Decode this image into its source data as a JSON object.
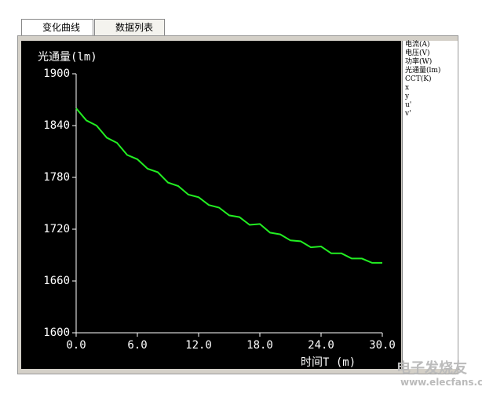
{
  "tabs": [
    "变化曲线",
    "数据列表"
  ],
  "parameters": [
    "电流(A)",
    "电压(V)",
    "功率(W)",
    "光通量(lm)",
    "CCT(K)",
    "x",
    "y",
    "u'",
    "v'"
  ],
  "watermark": {
    "name": "电子发烧友",
    "url": "www.elecfans.com"
  },
  "chart_data": {
    "type": "line",
    "y_label": "光通量(lm)",
    "x_label": "时间T (m)",
    "xlim": [
      0,
      30
    ],
    "ylim": [
      1600,
      1900
    ],
    "xticks": [
      {
        "value": 0,
        "label": "0.0"
      },
      {
        "value": 6,
        "label": "6.0"
      },
      {
        "value": 12,
        "label": "12.0"
      },
      {
        "value": 18,
        "label": "18.0"
      },
      {
        "value": 24,
        "label": "24.0"
      },
      {
        "value": 30,
        "label": "30.0"
      }
    ],
    "yticks": [
      1600,
      1660,
      1720,
      1780,
      1840,
      1900
    ],
    "x": [
      0,
      1,
      2,
      3,
      4,
      5,
      6,
      7,
      8,
      9,
      10,
      11,
      12,
      13,
      14,
      15,
      16,
      17,
      18,
      19,
      20,
      21,
      22,
      23,
      24,
      25,
      26,
      27,
      28,
      29,
      30
    ],
    "series": [
      {
        "color": "#22ee22",
        "values": [
          1860,
          1846,
          1840,
          1826,
          1820,
          1806,
          1801,
          1790,
          1786,
          1774,
          1770,
          1760,
          1757,
          1748,
          1745,
          1736,
          1734,
          1725,
          1726,
          1716,
          1714,
          1707,
          1706,
          1699,
          1700,
          1692,
          1692,
          1686,
          1686,
          1681,
          1681
        ]
      }
    ]
  }
}
